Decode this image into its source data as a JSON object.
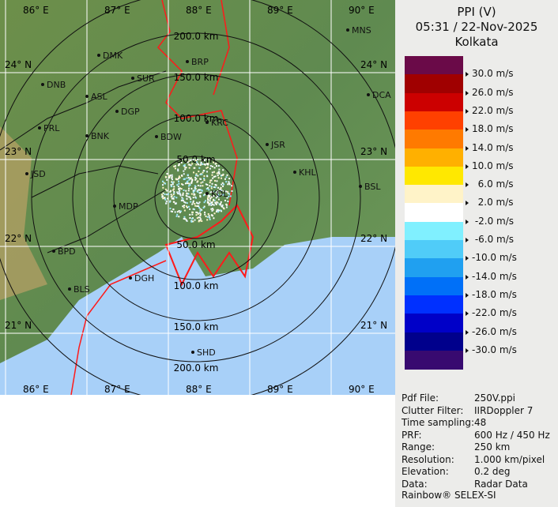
{
  "header": {
    "product": "PPI (V)",
    "datetime": "05:31 / 22-Nov-2025",
    "site": "Kolkata"
  },
  "legend": {
    "colors": [
      "#6a0a48",
      "#a00000",
      "#cc0000",
      "#ff4000",
      "#ff7a00",
      "#ffb000",
      "#ffe800",
      "#fff3c8",
      "#ffffff",
      "#80f0ff",
      "#50ccf8",
      "#20a0f0",
      "#0070f8",
      "#0030ff",
      "#0000c8",
      "#00008c",
      "#380a70"
    ],
    "labels": [
      "30.0 m/s",
      "26.0 m/s",
      "22.0 m/s",
      "18.0 m/s",
      "14.0 m/s",
      "10.0 m/s",
      "  6.0 m/s",
      "  2.0 m/s",
      " -2.0 m/s",
      " -6.0 m/s",
      "-10.0 m/s",
      "-14.0 m/s",
      "-18.0 m/s",
      "-22.0 m/s",
      "-26.0 m/s",
      "-30.0 m/s"
    ]
  },
  "info": [
    {
      "k": "Pdf File:",
      "v": "250V.ppi"
    },
    {
      "k": "Clutter Filter:",
      "v": "IIRDoppler 7"
    },
    {
      "k": "Time sampling:",
      "v": "48"
    },
    {
      "k": "PRF:",
      "v": "600 Hz / 450 Hz"
    },
    {
      "k": "Range:",
      "v": "250 km"
    },
    {
      "k": "Resolution:",
      "v": "1.000 km/pixel"
    },
    {
      "k": "Elevation:",
      "v": "0.2 deg"
    },
    {
      "k": "Data:",
      "v": "Radar Data"
    }
  ],
  "credit": "Rainbow® SELEX-SI",
  "map": {
    "lon_labels": [
      "86° E",
      "87° E",
      "88° E",
      "89° E",
      "90° E"
    ],
    "lat_labels": [
      "24° N",
      "23° N",
      "22° N",
      "21° N"
    ],
    "range_labels": [
      "50.0 km",
      "100.0 km",
      "150.0 km",
      "200.0 km"
    ],
    "stations": [
      "MNS",
      "DMK",
      "BRP",
      "SUR",
      "DNB",
      "ASL",
      "DGP",
      "DCA",
      "KRC",
      "PRL",
      "BNK",
      "BDW",
      "JSR",
      "JSD",
      "KHL",
      "BSL",
      "MDP",
      "BPD",
      "DGH",
      "BLS",
      "SHD",
      "KOL"
    ]
  }
}
